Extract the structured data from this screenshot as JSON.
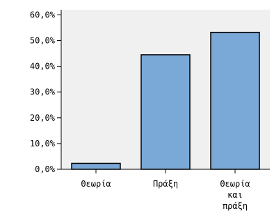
{
  "chart_data": {
    "type": "bar",
    "title": "",
    "xlabel": "",
    "ylabel": "",
    "categories": [
      "Θεωρία",
      "Πράξη",
      "Θεωρία και πράξη"
    ],
    "category_label_lines": [
      [
        "Θεωρία"
      ],
      [
        "Πράξη"
      ],
      [
        "Θεωρία",
        "και",
        "πράξη"
      ]
    ],
    "values": [
      2.3,
      44.5,
      53.2
    ],
    "ylim": [
      0,
      62
    ],
    "yticks": [
      0,
      10,
      20,
      30,
      40,
      50,
      60
    ],
    "ytick_labels": [
      "0,0%",
      "10,0%",
      "20,0%",
      "30,0%",
      "40,0%",
      "50,0%",
      "60,0%"
    ],
    "grid": false,
    "legend": "none",
    "colors": {
      "bar_fill": "#7aa9d8",
      "bar_stroke": "#000000",
      "plot_background": "#f0f0f0",
      "axis": "#000000"
    }
  }
}
